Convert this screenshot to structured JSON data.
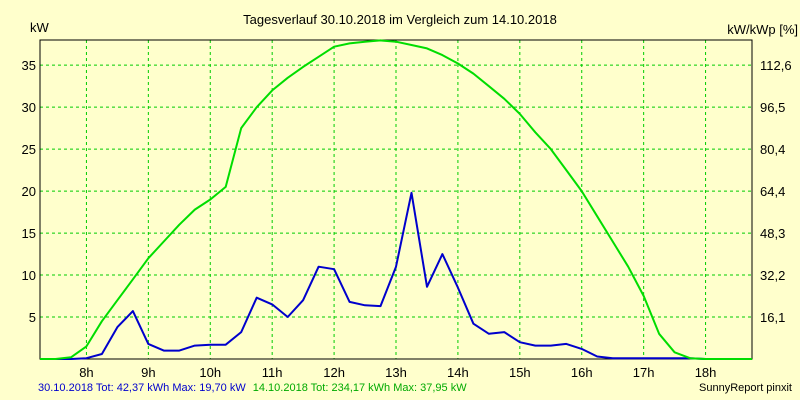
{
  "chart_data": {
    "type": "line",
    "title": "Tagesverlauf 30.10.2018 im Vergleich zum 14.10.2018",
    "ylabel_left": "kW",
    "ylabel_right": "kW/kWp [%]",
    "x_ticks": [
      "8h",
      "9h",
      "10h",
      "11h",
      "12h",
      "13h",
      "14h",
      "15h",
      "16h",
      "17h",
      "18h"
    ],
    "y_ticks_left": [
      "5",
      "10",
      "15",
      "20",
      "25",
      "30",
      "35"
    ],
    "y_ticks_right": [
      "16,1",
      "32,2",
      "48,3",
      "64,4",
      "80,4",
      "96,5",
      "112,6"
    ],
    "xlim": [
      7.25,
      18.75
    ],
    "ylim": [
      0,
      38
    ],
    "grid": true,
    "series": [
      {
        "name": "30.10.2018",
        "color": "#0000cc",
        "x": [
          7.25,
          7.5,
          7.75,
          8.0,
          8.25,
          8.5,
          8.75,
          9.0,
          9.25,
          9.5,
          9.75,
          10.0,
          10.25,
          10.5,
          10.75,
          11.0,
          11.25,
          11.5,
          11.75,
          12.0,
          12.25,
          12.5,
          12.75,
          13.0,
          13.25,
          13.5,
          13.75,
          14.0,
          14.25,
          14.5,
          14.75,
          15.0,
          15.25,
          15.5,
          15.75,
          16.0,
          16.25,
          16.5,
          16.75,
          17.0,
          17.25,
          17.5,
          17.75,
          18.0,
          18.25,
          18.5,
          18.75
        ],
        "values": [
          0,
          0,
          0,
          0.1,
          0.6,
          3.8,
          5.7,
          1.8,
          1.0,
          1.0,
          1.6,
          1.7,
          1.7,
          3.2,
          7.3,
          6.5,
          5.0,
          7.0,
          11.0,
          10.7,
          6.8,
          6.4,
          6.3,
          11.0,
          19.8,
          8.6,
          12.5,
          8.5,
          4.2,
          3.0,
          3.2,
          2.0,
          1.6,
          1.6,
          1.8,
          1.2,
          0.3,
          0.1,
          0.1,
          0.1,
          0.1,
          0.1,
          0.1,
          0,
          0,
          0,
          0
        ]
      },
      {
        "name": "14.10.2018",
        "color": "#00dd00",
        "x": [
          7.25,
          7.5,
          7.75,
          8.0,
          8.25,
          8.5,
          8.75,
          9.0,
          9.25,
          9.5,
          9.75,
          10.0,
          10.25,
          10.5,
          10.75,
          11.0,
          11.25,
          11.5,
          11.75,
          12.0,
          12.25,
          12.5,
          12.75,
          13.0,
          13.25,
          13.5,
          13.75,
          14.0,
          14.25,
          14.5,
          14.75,
          15.0,
          15.25,
          15.5,
          15.75,
          16.0,
          16.25,
          16.5,
          16.75,
          17.0,
          17.25,
          17.5,
          17.75,
          18.0,
          18.25,
          18.5,
          18.75
        ],
        "values": [
          0,
          0,
          0.2,
          1.5,
          4.5,
          7.0,
          9.5,
          12.0,
          14.0,
          16.0,
          17.8,
          19.0,
          20.5,
          27.5,
          30.0,
          32.0,
          33.5,
          34.8,
          36.0,
          37.2,
          37.6,
          37.8,
          37.95,
          37.8,
          37.4,
          37.0,
          36.2,
          35.2,
          34.0,
          32.5,
          31.0,
          29.2,
          27.0,
          25.0,
          22.5,
          20.0,
          17.0,
          14.0,
          11.0,
          7.5,
          3.0,
          0.8,
          0.1,
          0,
          0,
          0,
          0
        ]
      }
    ]
  },
  "footer": {
    "series1_text": "30.10.2018 Tot: 42,37 kWh Max: 19,70 kW",
    "series2_text": "14.10.2018 Tot: 234,17 kWh Max: 37,95 kW",
    "credit": "SunnyReport pinxit"
  }
}
